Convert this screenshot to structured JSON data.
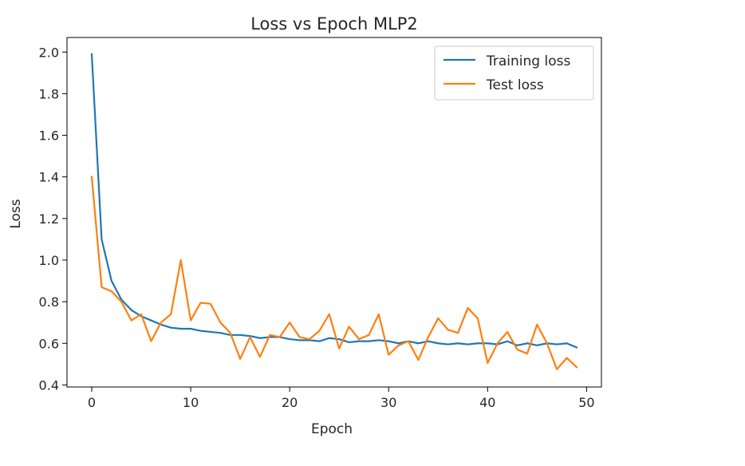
{
  "chart_data": {
    "type": "line",
    "title": "Loss vs Epoch MLP2",
    "xlabel": "Epoch",
    "ylabel": "Loss",
    "xlim": [
      -2.5,
      51.5
    ],
    "ylim": [
      0.39,
      2.07
    ],
    "xticks": [
      0,
      10,
      20,
      30,
      40,
      50
    ],
    "yticks": [
      0.4,
      0.6,
      0.8,
      1.0,
      1.2,
      1.4,
      1.6,
      1.8,
      2.0
    ],
    "ytick_labels": [
      "0.4",
      "0.6",
      "0.8",
      "1.0",
      "1.2",
      "1.4",
      "1.6",
      "1.8",
      "2.0"
    ],
    "grid": false,
    "legend_position": "top-right",
    "x": [
      0,
      1,
      2,
      3,
      4,
      5,
      6,
      7,
      8,
      9,
      10,
      11,
      12,
      13,
      14,
      15,
      16,
      17,
      18,
      19,
      20,
      21,
      22,
      23,
      24,
      25,
      26,
      27,
      28,
      29,
      30,
      31,
      32,
      33,
      34,
      35,
      36,
      37,
      38,
      39,
      40,
      41,
      42,
      43,
      44,
      45,
      46,
      47,
      48,
      49
    ],
    "series": [
      {
        "name": "Training loss",
        "color": "#1f77b4",
        "values": [
          1.99,
          1.1,
          0.9,
          0.81,
          0.76,
          0.73,
          0.71,
          0.69,
          0.675,
          0.67,
          0.67,
          0.66,
          0.655,
          0.65,
          0.64,
          0.64,
          0.635,
          0.625,
          0.63,
          0.63,
          0.62,
          0.615,
          0.615,
          0.61,
          0.625,
          0.62,
          0.605,
          0.61,
          0.61,
          0.615,
          0.61,
          0.6,
          0.61,
          0.6,
          0.61,
          0.6,
          0.595,
          0.6,
          0.595,
          0.6,
          0.6,
          0.595,
          0.61,
          0.59,
          0.6,
          0.59,
          0.6,
          0.595,
          0.6,
          0.58
        ]
      },
      {
        "name": "Test loss",
        "color": "#ff7f0e",
        "values": [
          1.4,
          0.87,
          0.85,
          0.8,
          0.71,
          0.74,
          0.61,
          0.7,
          0.74,
          1.0,
          0.71,
          0.795,
          0.79,
          0.7,
          0.65,
          0.525,
          0.63,
          0.535,
          0.64,
          0.63,
          0.7,
          0.63,
          0.62,
          0.66,
          0.74,
          0.575,
          0.68,
          0.62,
          0.64,
          0.74,
          0.545,
          0.59,
          0.61,
          0.52,
          0.63,
          0.72,
          0.665,
          0.65,
          0.77,
          0.72,
          0.505,
          0.6,
          0.655,
          0.57,
          0.55,
          0.69,
          0.6,
          0.475,
          0.53,
          0.485
        ]
      }
    ]
  }
}
